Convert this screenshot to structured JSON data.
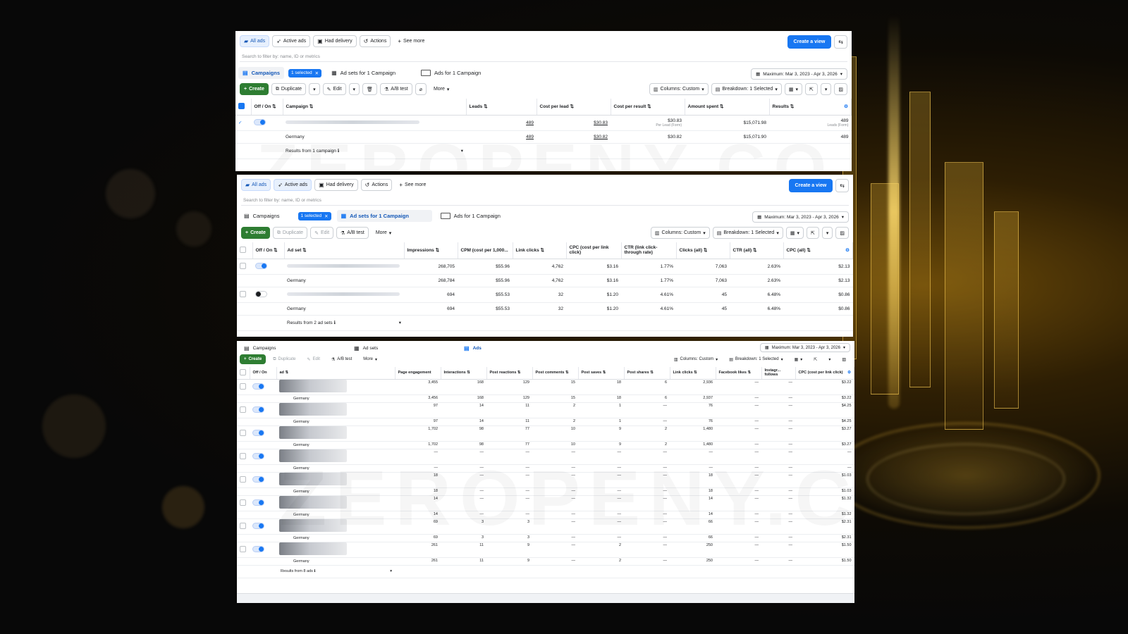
{
  "panels": [
    {
      "filters": [
        "All ads",
        "Active ads",
        "Had delivery",
        "Actions",
        "See more"
      ],
      "create_view": "Create a view",
      "search_placeholder": "Search to filter by: name, ID or metrics",
      "tabs": {
        "campaigns": "Campaigns",
        "selected": "1 selected",
        "adsets": "Ad sets for 1 Campaign",
        "ads": "Ads for 1 Campaign"
      },
      "date": "Maximum: Mar 3, 2023 - Apr 3, 2026",
      "toolbar": {
        "create": "Create",
        "duplicate": "Duplicate",
        "edit": "Edit",
        "abtest": "A/B test",
        "more": "More",
        "columns": "Columns: Custom",
        "breakdown": "Breakdown: 1 Selected"
      },
      "headers": [
        "Off / On",
        "Campaign",
        "Leads",
        "Cost per lead",
        "Cost per result",
        "Amount spent",
        "Results"
      ],
      "rows": [
        {
          "name": "",
          "leads": "489",
          "cpl": "$30.83",
          "cpr": "$30.83",
          "cpr_sub": "Per Lead (Form)",
          "spent": "$15,071.98",
          "results": "489",
          "results_sub": "Leads (Form)"
        },
        {
          "name": "Germany",
          "leads": "489",
          "cpl": "$30.82",
          "cpr": "$30.82",
          "cpr_sub": "",
          "spent": "$15,071.90",
          "results": "489",
          "results_sub": ""
        }
      ],
      "footer": "Results from 1 campaign"
    },
    {
      "filters": [
        "All ads",
        "Active ads",
        "Had delivery",
        "Actions",
        "See more"
      ],
      "create_view": "Create a view",
      "search_placeholder": "Search to filter by: name, ID or metrics",
      "tabs": {
        "campaigns": "Campaigns",
        "selected": "1 selected",
        "adsets": "Ad sets for 1 Campaign",
        "ads": "Ads for 1 Campaign"
      },
      "date": "Maximum: Mar 3, 2023 - Apr 3, 2026",
      "toolbar": {
        "create": "Create",
        "duplicate": "Duplicate",
        "edit": "Edit",
        "abtest": "A/B test",
        "more": "More",
        "columns": "Columns: Custom",
        "breakdown": "Breakdown: 1 Selected"
      },
      "headers": [
        "Off / On",
        "Ad set",
        "Impressions",
        "CPM (cost per 1,000...",
        "Link clicks",
        "CPC (cost per link click)",
        "CTR (link click-through rate)",
        "Clicks (all)",
        "CTR (all)",
        "CPC (all)"
      ],
      "rows": [
        {
          "name": "",
          "cells": [
            "268,705",
            "$55.96",
            "4,762",
            "$3.16",
            "1.77%",
            "7,063",
            "2.63%",
            "$2.13"
          ]
        },
        {
          "name": "Germany",
          "cells": [
            "268,784",
            "$55.96",
            "4,762",
            "$3.16",
            "1.77%",
            "7,063",
            "2.63%",
            "$2.13"
          ]
        },
        {
          "name": "",
          "cells": [
            "694",
            "$55.53",
            "32",
            "$1.20",
            "4.61%",
            "45",
            "6.48%",
            "$0.86"
          ]
        },
        {
          "name": "Germany",
          "cells": [
            "694",
            "$55.53",
            "32",
            "$1.20",
            "4.61%",
            "45",
            "6.48%",
            "$0.86"
          ]
        }
      ],
      "footer": "Results from 2 ad sets"
    },
    {
      "tabs": {
        "campaigns": "Campaigns",
        "adsets": "Ad sets",
        "ads": "Ads"
      },
      "date": "Maximum: Mar 3, 2023 - Apr 3, 2026",
      "toolbar": {
        "create": "Create",
        "duplicate": "Duplicate",
        "edit": "Edit",
        "abtest": "A/B test",
        "more": "More",
        "columns": "Columns: Custom",
        "breakdown": "Breakdown: 1 Selected"
      },
      "headers": [
        "Off / On",
        "ad",
        "Page engagement",
        "Interactions",
        "Post reactions",
        "Post comments",
        "Post saves",
        "Post shares",
        "Link clicks",
        "Facebook likes",
        "Instagr... follows",
        "CPC (cost per link click)"
      ],
      "rows": [
        {
          "name": "",
          "cells": [
            "3,455",
            "168",
            "129",
            "15",
            "18",
            "6",
            "2,936",
            "—",
            "—",
            "$3.22"
          ]
        },
        {
          "name": "Germany",
          "cells": [
            "3,456",
            "168",
            "129",
            "15",
            "18",
            "6",
            "2,937",
            "—",
            "—",
            "$3.22"
          ]
        },
        {
          "name": "",
          "cells": [
            "97",
            "14",
            "11",
            "2",
            "1",
            "—",
            "76",
            "—",
            "—",
            "$4.25"
          ]
        },
        {
          "name": "Germany",
          "cells": [
            "97",
            "14",
            "11",
            "2",
            "1",
            "—",
            "76",
            "—",
            "—",
            "$4.25"
          ]
        },
        {
          "name": "",
          "cells": [
            "1,702",
            "98",
            "77",
            "10",
            "9",
            "2",
            "1,480",
            "—",
            "—",
            "$3.27"
          ]
        },
        {
          "name": "Germany",
          "cells": [
            "1,702",
            "98",
            "77",
            "10",
            "9",
            "2",
            "1,480",
            "—",
            "—",
            "$3.27"
          ]
        },
        {
          "name": "",
          "cells": [
            "—",
            "—",
            "—",
            "—",
            "—",
            "—",
            "—",
            "—",
            "—",
            "—"
          ]
        },
        {
          "name": "Germany",
          "cells": [
            "—",
            "—",
            "—",
            "—",
            "—",
            "—",
            "—",
            "—",
            "—",
            "—"
          ]
        },
        {
          "name": "",
          "cells": [
            "18",
            "—",
            "—",
            "—",
            "—",
            "—",
            "18",
            "—",
            "—",
            "$1.03"
          ]
        },
        {
          "name": "Germany",
          "cells": [
            "18",
            "—",
            "—",
            "—",
            "—",
            "—",
            "18",
            "—",
            "—",
            "$1.03"
          ]
        },
        {
          "name": "",
          "cells": [
            "14",
            "—",
            "—",
            "—",
            "—",
            "—",
            "14",
            "—",
            "—",
            "$1.32"
          ]
        },
        {
          "name": "Germany",
          "cells": [
            "14",
            "—",
            "—",
            "—",
            "—",
            "—",
            "14",
            "—",
            "—",
            "$1.32"
          ]
        },
        {
          "name": "",
          "cells": [
            "69",
            "3",
            "3",
            "—",
            "—",
            "—",
            "66",
            "—",
            "—",
            "$2.31"
          ]
        },
        {
          "name": "Germany",
          "cells": [
            "69",
            "3",
            "3",
            "—",
            "—",
            "—",
            "66",
            "—",
            "—",
            "$2.31"
          ]
        },
        {
          "name": "",
          "cells": [
            "261",
            "11",
            "9",
            "—",
            "2",
            "—",
            "250",
            "—",
            "—",
            "$1.50"
          ]
        },
        {
          "name": "Germany",
          "cells": [
            "261",
            "11",
            "9",
            "—",
            "2",
            "—",
            "250",
            "—",
            "—",
            "$1.50"
          ]
        }
      ],
      "footer": "Results from 8 ads"
    }
  ],
  "watermark": "ZEROPENY.CO",
  "colors": {
    "accent": "#1877f2",
    "create": "#2e7d32",
    "background": "#080808",
    "gold": "#f5c542"
  },
  "icons": [
    "grid-icon",
    "paper-plane-icon",
    "calendar-icon",
    "refresh-icon",
    "plus-icon",
    "copy-icon",
    "pencil-icon",
    "trash-icon",
    "flask-icon",
    "columns-icon",
    "calendar-icon",
    "export-icon",
    "gear-icon"
  ]
}
